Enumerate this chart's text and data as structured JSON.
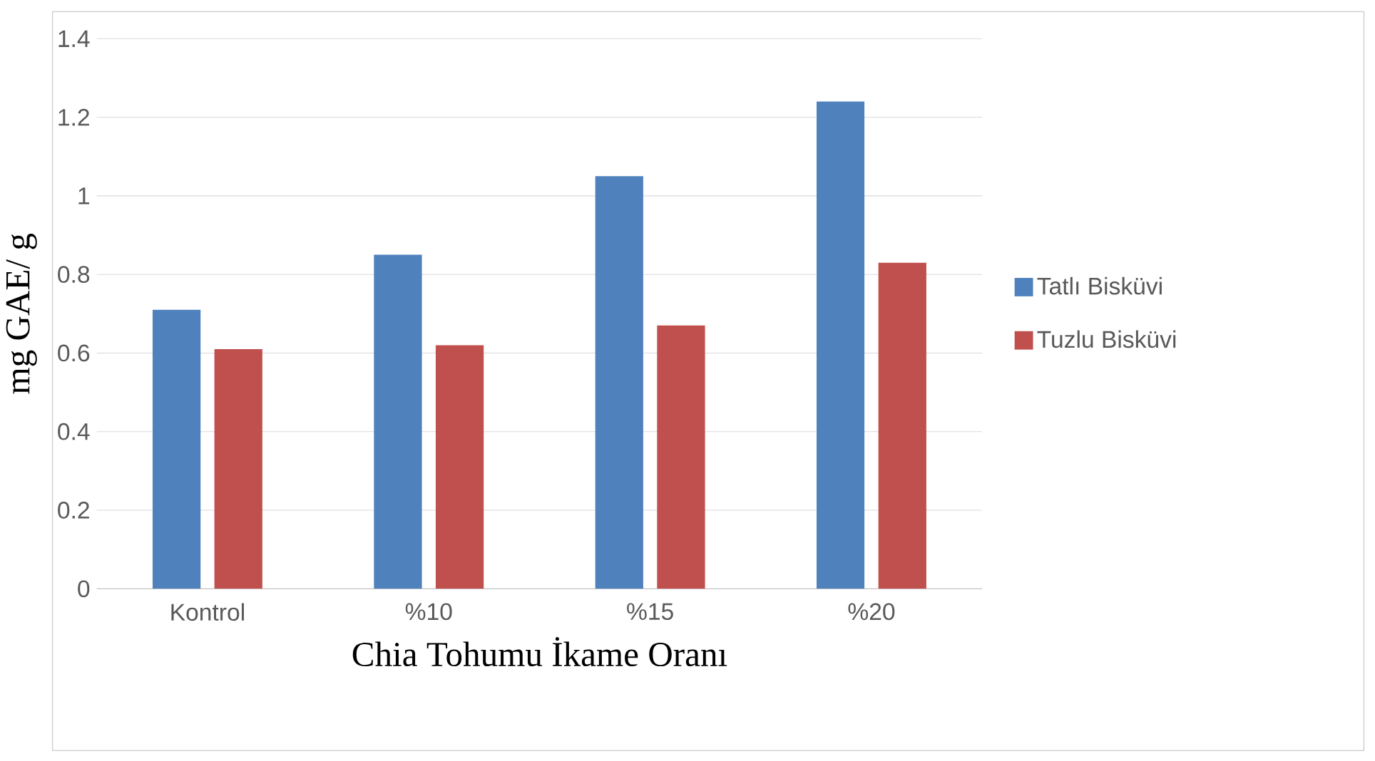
{
  "chart_data": {
    "type": "bar",
    "xlabel": "Chia Tohumu İkame Oranı",
    "ylabel": "mg GAE/ g",
    "categories": [
      "Kontrol",
      "%10",
      "%15",
      "%20"
    ],
    "series": [
      {
        "name": "Tatlı Bisküvi",
        "color": "#4f81bd",
        "values": [
          0.71,
          0.85,
          1.05,
          1.24
        ]
      },
      {
        "name": "Tuzlu Bisküvi",
        "color": "#c0504d",
        "values": [
          0.61,
          0.62,
          0.67,
          0.83
        ]
      }
    ],
    "ylim": [
      0,
      1.4
    ],
    "yticks": [
      0,
      0.2,
      0.4,
      0.6,
      0.8,
      1,
      1.2,
      1.4
    ],
    "grid": "y",
    "legend": "right"
  }
}
